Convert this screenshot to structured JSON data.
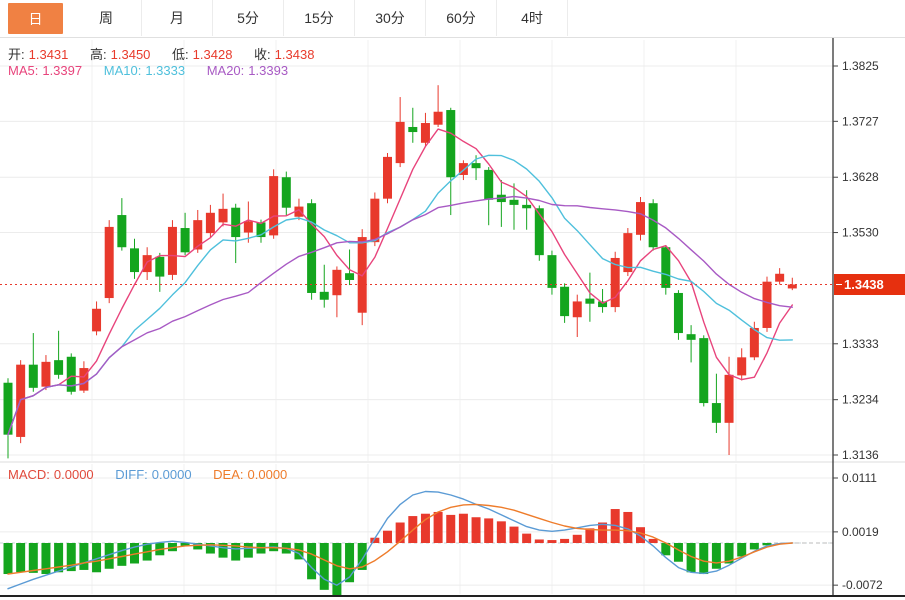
{
  "tabs": {
    "items": [
      {
        "label": "日",
        "active": true
      },
      {
        "label": "周",
        "active": false
      },
      {
        "label": "月",
        "active": false
      },
      {
        "label": "5分",
        "active": false
      },
      {
        "label": "15分",
        "active": false
      },
      {
        "label": "30分",
        "active": false
      },
      {
        "label": "60分",
        "active": false
      },
      {
        "label": "4时",
        "active": false
      }
    ]
  },
  "legend": {
    "ohlc": {
      "o_label": "开:",
      "o": "1.3431",
      "h_label": "高:",
      "h": "1.3450",
      "l_label": "低:",
      "l": "1.3428",
      "c_label": "收:",
      "c": "1.3438"
    },
    "ma": {
      "ma5_label": "MA5:",
      "ma5": "1.3397",
      "ma10_label": "MA10:",
      "ma10": "1.3333",
      "ma20_label": "MA20:",
      "ma20": "1.3393"
    },
    "macd": {
      "macd_label": "MACD:",
      "macd": "0.0000",
      "diff_label": "DIFF:",
      "diff": "0.0000",
      "dea_label": "DEA:",
      "dea": "0.0000"
    }
  },
  "price_axis": {
    "ticks": [
      "1.3825",
      "1.3727",
      "1.3628",
      "1.3530",
      "1.3333",
      "1.3234",
      "1.3136"
    ],
    "tick_prices": [
      1.3825,
      1.3727,
      1.3628,
      1.353,
      1.3333,
      1.3234,
      1.3136
    ],
    "current": "1.3438",
    "current_price": 1.3438
  },
  "macd_axis": {
    "ticks": [
      "0.0111",
      "0.0019",
      "-0.0072"
    ],
    "tick_values": [
      0.0111,
      0.0019,
      -0.0072
    ]
  },
  "colors": {
    "up": "#e8392c",
    "down": "#14a51e",
    "tab_active": "#f08143",
    "ma5": "#e8447c",
    "ma10": "#4fc0dc",
    "ma20": "#a85ac4",
    "diff": "#5b9bd5",
    "dea": "#ee7c2b",
    "grid": "#ececec",
    "vgrid": "#f2f2f2",
    "axis": "#444444",
    "axis_text": "#333333",
    "current_line": "#e8392c",
    "badge": "#e6300f",
    "separator": "#dddddd",
    "bottom_border": "#222222",
    "zero_dash": "#c8d6da"
  },
  "chart_data": {
    "type": "candlestick",
    "title": "",
    "timeframe_selected": "日",
    "panels": [
      "price",
      "macd"
    ],
    "ohlc_order": "open,high,low,close",
    "main": {
      "ylim": [
        1.3136,
        1.3825
      ],
      "y_ticks": [
        1.3825,
        1.3727,
        1.3628,
        1.353,
        1.3333,
        1.3234,
        1.3136
      ],
      "current_price": 1.3438,
      "ma_periods": [
        5,
        10,
        20
      ],
      "ma_latest": {
        "ma5": 1.3397,
        "ma10": 1.3333,
        "ma20": 1.3393
      },
      "candles": [
        [
          1.3264,
          1.3272,
          1.313,
          1.3172
        ],
        [
          1.3168,
          1.3304,
          1.3157,
          1.3296
        ],
        [
          1.3296,
          1.3352,
          1.3248,
          1.3255
        ],
        [
          1.3257,
          1.3313,
          1.3251,
          1.3301
        ],
        [
          1.3304,
          1.3356,
          1.3271,
          1.3278
        ],
        [
          1.331,
          1.3316,
          1.3243,
          1.3248
        ],
        [
          1.325,
          1.3302,
          1.3246,
          1.329
        ],
        [
          1.3355,
          1.3408,
          1.3348,
          1.3395
        ],
        [
          1.3414,
          1.3552,
          1.3405,
          1.354
        ],
        [
          1.3561,
          1.3591,
          1.3498,
          1.3504
        ],
        [
          1.3502,
          1.3519,
          1.3448,
          1.346
        ],
        [
          1.346,
          1.3504,
          1.3446,
          1.349
        ],
        [
          1.3487,
          1.3494,
          1.3425,
          1.3452
        ],
        [
          1.3455,
          1.3552,
          1.3446,
          1.354
        ],
        [
          1.3538,
          1.3565,
          1.349,
          1.3495
        ],
        [
          1.35,
          1.357,
          1.3494,
          1.3552
        ],
        [
          1.3529,
          1.3579,
          1.3522,
          1.3565
        ],
        [
          1.3548,
          1.3599,
          1.3541,
          1.3572
        ],
        [
          1.3574,
          1.3581,
          1.3476,
          1.3522
        ],
        [
          1.353,
          1.3585,
          1.3512,
          1.355
        ],
        [
          1.3548,
          1.3553,
          1.3512,
          1.3522
        ],
        [
          1.3525,
          1.3642,
          1.3519,
          1.363
        ],
        [
          1.3628,
          1.3638,
          1.356,
          1.3574
        ],
        [
          1.3558,
          1.359,
          1.3552,
          1.3576
        ],
        [
          1.3582,
          1.3589,
          1.3411,
          1.3423
        ],
        [
          1.3425,
          1.3473,
          1.3397,
          1.3411
        ],
        [
          1.3419,
          1.347,
          1.338,
          1.3464
        ],
        [
          1.3458,
          1.35,
          1.3437,
          1.3446
        ],
        [
          1.3388,
          1.3536,
          1.3366,
          1.3522
        ],
        [
          1.3513,
          1.3601,
          1.3506,
          1.359
        ],
        [
          1.359,
          1.3671,
          1.3582,
          1.3664
        ],
        [
          1.3653,
          1.377,
          1.3646,
          1.3726
        ],
        [
          1.3717,
          1.3751,
          1.3689,
          1.3708
        ],
        [
          1.3689,
          1.3742,
          1.3682,
          1.3724
        ],
        [
          1.3721,
          1.3791,
          1.3717,
          1.3744
        ],
        [
          1.3747,
          1.3751,
          1.3561,
          1.3628
        ],
        [
          1.3632,
          1.3658,
          1.3623,
          1.3653
        ],
        [
          1.3653,
          1.3667,
          1.3623,
          1.3644
        ],
        [
          1.3641,
          1.3646,
          1.3543,
          1.3588
        ],
        [
          1.3597,
          1.3623,
          1.354,
          1.3584
        ],
        [
          1.3588,
          1.3617,
          1.3535,
          1.3579
        ],
        [
          1.3579,
          1.3605,
          1.3535,
          1.3573
        ],
        [
          1.3573,
          1.3578,
          1.348,
          1.349
        ],
        [
          1.349,
          1.3498,
          1.342,
          1.3432
        ],
        [
          1.3434,
          1.344,
          1.337,
          1.3382
        ],
        [
          1.338,
          1.342,
          1.3345,
          1.3408
        ],
        [
          1.3413,
          1.3459,
          1.3372,
          1.3404
        ],
        [
          1.3408,
          1.343,
          1.3388,
          1.3398
        ],
        [
          1.3398,
          1.3496,
          1.3389,
          1.3485
        ],
        [
          1.346,
          1.3538,
          1.3453,
          1.3529
        ],
        [
          1.3526,
          1.3593,
          1.3516,
          1.3584
        ],
        [
          1.3582,
          1.3589,
          1.3498,
          1.3504
        ],
        [
          1.3504,
          1.3508,
          1.342,
          1.3432
        ],
        [
          1.3423,
          1.3428,
          1.334,
          1.3352
        ],
        [
          1.335,
          1.3366,
          1.33,
          1.334
        ],
        [
          1.3343,
          1.3348,
          1.3222,
          1.3228
        ],
        [
          1.3228,
          1.328,
          1.3175,
          1.3193
        ],
        [
          1.3193,
          1.331,
          1.3136,
          1.3278
        ],
        [
          1.3277,
          1.3325,
          1.3268,
          1.3309
        ],
        [
          1.3309,
          1.3372,
          1.3304,
          1.3361
        ],
        [
          1.3361,
          1.3452,
          1.3354,
          1.3443
        ],
        [
          1.3443,
          1.3467,
          1.3438,
          1.3457
        ],
        [
          1.3431,
          1.345,
          1.3428,
          1.3438
        ]
      ]
    },
    "macd": {
      "ylim": [
        -0.0072,
        0.0111
      ],
      "y_ticks": [
        0.0111,
        0.0019,
        -0.0072
      ],
      "latest": {
        "macd": 0.0,
        "diff": 0.0,
        "dea": 0.0
      },
      "hist": [
        -0.0053,
        -0.005,
        -0.0051,
        -0.0053,
        -0.005,
        -0.0048,
        -0.0046,
        -0.005,
        -0.0044,
        -0.0039,
        -0.0035,
        -0.003,
        -0.0021,
        -0.0014,
        -0.0005,
        -0.0011,
        -0.0018,
        -0.0025,
        -0.003,
        -0.0025,
        -0.0018,
        -0.0014,
        -0.0018,
        -0.0028,
        -0.0062,
        -0.008,
        -0.0089,
        -0.0067,
        -0.0046,
        0.0009,
        0.0021,
        0.0035,
        0.0046,
        0.005,
        0.0053,
        0.0048,
        0.005,
        0.0044,
        0.0042,
        0.0037,
        0.0028,
        0.0016,
        0.0006,
        0.0005,
        0.0007,
        0.0014,
        0.0025,
        0.0035,
        0.0058,
        0.0053,
        0.0027,
        0.0007,
        -0.0021,
        -0.0032,
        -0.005,
        -0.0053,
        -0.0044,
        -0.0035,
        -0.0023,
        -0.0011,
        -0.0004,
        0,
        0
      ],
      "diff": [
        -0.0078,
        -0.007,
        -0.0062,
        -0.0055,
        -0.0048,
        -0.0041,
        -0.0034,
        -0.0027,
        -0.002,
        -0.0013,
        -0.0007,
        -0.0002,
        0.0001,
        0.0003,
        0.0001,
        -0.0002,
        -0.0005,
        -0.0008,
        -0.001,
        -0.0009,
        -0.0008,
        -0.0007,
        -0.0009,
        -0.0018,
        -0.0042,
        -0.0062,
        -0.0072,
        -0.0058,
        -0.0028,
        0.0008,
        0.0042,
        0.0066,
        0.0082,
        0.0088,
        0.0087,
        0.0082,
        0.0075,
        0.0066,
        0.0058,
        0.0048,
        0.0038,
        0.0028,
        0.0022,
        0.002,
        0.0022,
        0.0026,
        0.003,
        0.0032,
        0.003,
        0.0024,
        0.0012,
        -0.0005,
        -0.0025,
        -0.0042,
        -0.005,
        -0.0052,
        -0.0048,
        -0.0038,
        -0.0026,
        -0.0014,
        -0.0005,
        -0.0001,
        0
      ],
      "dea": [
        -0.0053,
        -0.005,
        -0.0047,
        -0.0044,
        -0.0041,
        -0.0038,
        -0.0034,
        -0.0031,
        -0.0027,
        -0.0023,
        -0.0019,
        -0.0015,
        -0.0011,
        -0.0008,
        -0.0005,
        -0.0004,
        -0.0003,
        -0.0004,
        -0.0005,
        -0.0007,
        -0.0008,
        -0.0008,
        -0.0009,
        -0.0012,
        -0.0019,
        -0.0029,
        -0.0039,
        -0.0044,
        -0.0041,
        -0.003,
        -0.0015,
        0.0003,
        0.0022,
        0.004,
        0.0053,
        0.0061,
        0.0065,
        0.0066,
        0.0064,
        0.0061,
        0.0056,
        0.0049,
        0.0042,
        0.0035,
        0.0029,
        0.0025,
        0.0023,
        0.0022,
        0.0022,
        0.0021,
        0.0017,
        0.001,
        0,
        -0.0012,
        -0.0023,
        -0.0031,
        -0.0034,
        -0.0031,
        -0.0024,
        -0.0015,
        -0.0007,
        -0.0002,
        0
      ]
    }
  }
}
